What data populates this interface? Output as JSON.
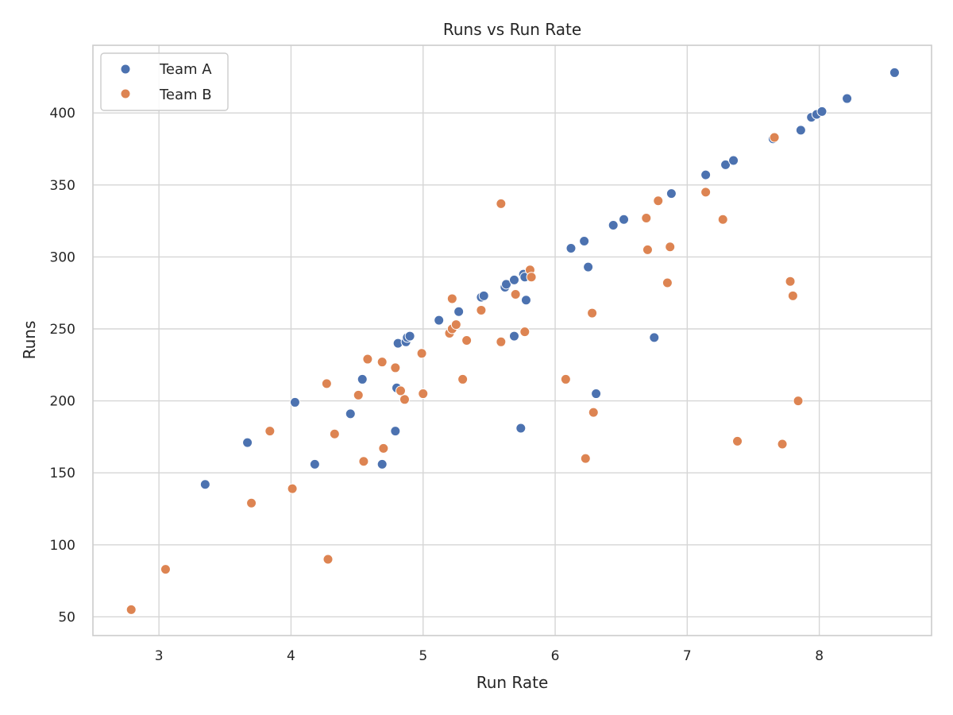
{
  "chart_data": {
    "type": "scatter",
    "title": "Runs vs Run Rate",
    "xlabel": "Run Rate",
    "ylabel": "Runs",
    "xlim": [
      2.5,
      8.85
    ],
    "ylim": [
      37,
      447
    ],
    "xticks": [
      3,
      4,
      5,
      6,
      7,
      8
    ],
    "yticks": [
      50,
      100,
      150,
      200,
      250,
      300,
      350,
      400
    ],
    "grid": true,
    "legend_position": "top-left",
    "series": [
      {
        "name": "Team A",
        "color": "#4c72b0",
        "points": [
          [
            3.35,
            142
          ],
          [
            3.67,
            171
          ],
          [
            4.03,
            199
          ],
          [
            4.18,
            156
          ],
          [
            4.45,
            191
          ],
          [
            4.54,
            215
          ],
          [
            4.69,
            156
          ],
          [
            4.79,
            179
          ],
          [
            4.8,
            209
          ],
          [
            4.81,
            240
          ],
          [
            4.87,
            241
          ],
          [
            4.88,
            244
          ],
          [
            4.9,
            245
          ],
          [
            5.12,
            256
          ],
          [
            5.27,
            262
          ],
          [
            5.44,
            272
          ],
          [
            5.46,
            273
          ],
          [
            5.62,
            279
          ],
          [
            5.63,
            281
          ],
          [
            5.69,
            284
          ],
          [
            5.69,
            245
          ],
          [
            5.74,
            181
          ],
          [
            5.76,
            288
          ],
          [
            5.77,
            286
          ],
          [
            5.78,
            270
          ],
          [
            6.12,
            306
          ],
          [
            6.22,
            311
          ],
          [
            6.25,
            293
          ],
          [
            6.31,
            205
          ],
          [
            6.44,
            322
          ],
          [
            6.52,
            326
          ],
          [
            6.75,
            244
          ],
          [
            6.88,
            344
          ],
          [
            7.14,
            357
          ],
          [
            7.29,
            364
          ],
          [
            7.35,
            367
          ],
          [
            7.65,
            382
          ],
          [
            7.86,
            388
          ],
          [
            7.94,
            397
          ],
          [
            7.98,
            399
          ],
          [
            8.02,
            401
          ],
          [
            8.21,
            410
          ],
          [
            8.57,
            428
          ]
        ]
      },
      {
        "name": "Team B",
        "color": "#dd8452",
        "points": [
          [
            2.79,
            55
          ],
          [
            3.05,
            83
          ],
          [
            3.7,
            129
          ],
          [
            3.84,
            179
          ],
          [
            4.01,
            139
          ],
          [
            4.27,
            212
          ],
          [
            4.28,
            90
          ],
          [
            4.33,
            177
          ],
          [
            4.51,
            204
          ],
          [
            4.55,
            158
          ],
          [
            4.58,
            229
          ],
          [
            4.69,
            227
          ],
          [
            4.7,
            167
          ],
          [
            4.79,
            223
          ],
          [
            4.83,
            207
          ],
          [
            4.86,
            201
          ],
          [
            4.99,
            233
          ],
          [
            5.0,
            205
          ],
          [
            5.2,
            247
          ],
          [
            5.22,
            250
          ],
          [
            5.22,
            271
          ],
          [
            5.25,
            253
          ],
          [
            5.3,
            215
          ],
          [
            5.33,
            242
          ],
          [
            5.44,
            263
          ],
          [
            5.59,
            241
          ],
          [
            5.59,
            337
          ],
          [
            5.7,
            274
          ],
          [
            5.77,
            248
          ],
          [
            5.81,
            291
          ],
          [
            5.82,
            286
          ],
          [
            6.08,
            215
          ],
          [
            6.23,
            160
          ],
          [
            6.28,
            261
          ],
          [
            6.29,
            192
          ],
          [
            6.69,
            327
          ],
          [
            6.7,
            305
          ],
          [
            6.78,
            339
          ],
          [
            6.85,
            282
          ],
          [
            6.87,
            307
          ],
          [
            7.14,
            345
          ],
          [
            7.27,
            326
          ],
          [
            7.38,
            172
          ],
          [
            7.66,
            383
          ],
          [
            7.72,
            170
          ],
          [
            7.78,
            283
          ],
          [
            7.8,
            273
          ],
          [
            7.84,
            200
          ]
        ]
      }
    ]
  }
}
